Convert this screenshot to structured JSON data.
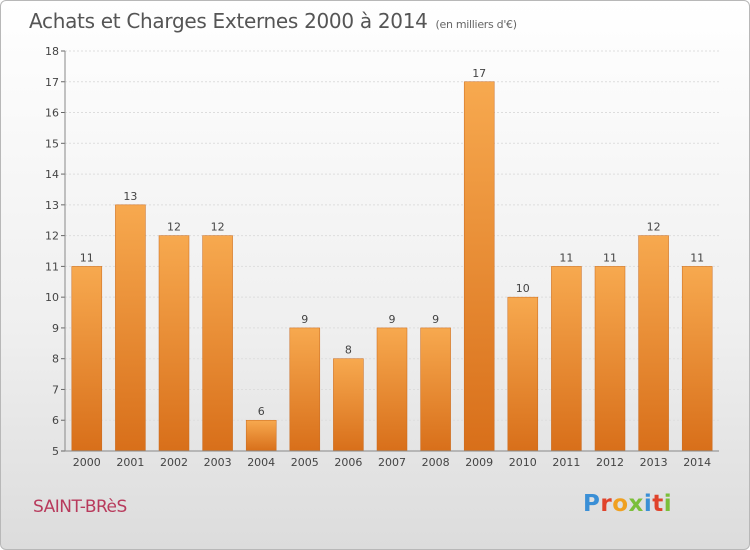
{
  "header": {
    "title": "Achats et Charges Externes 2000 à 2014",
    "subtitle": "(en milliers d'€)"
  },
  "footer": {
    "place": "SAINT-BRèS",
    "logo": "Proxiti"
  },
  "colors": {
    "bar_light": "#f7a94f",
    "bar_dark": "#d86f1a",
    "grid": "#dddddd",
    "place": "#b83a5c",
    "logo": [
      "#3a8fd6",
      "#e0432b",
      "#f0a020",
      "#7bbf3a",
      "#3a8fd6",
      "#e0432b",
      "#7bbf3a"
    ]
  },
  "chart_data": {
    "type": "bar",
    "title": "Achats et Charges Externes 2000 à 2014",
    "subtitle": "(en milliers d'€)",
    "categories": [
      "2000",
      "2001",
      "2002",
      "2003",
      "2004",
      "2005",
      "2006",
      "2007",
      "2008",
      "2009",
      "2010",
      "2011",
      "2012",
      "2013",
      "2014"
    ],
    "values": [
      11,
      13,
      12,
      12,
      6,
      9,
      8,
      9,
      9,
      17,
      10,
      11,
      11,
      12,
      11
    ],
    "ylim": [
      5,
      18
    ],
    "yticks": [
      5,
      6,
      7,
      8,
      9,
      10,
      11,
      12,
      13,
      14,
      15,
      16,
      17,
      18
    ],
    "grid": true,
    "legend": "none",
    "xlabel": "",
    "ylabel": ""
  }
}
